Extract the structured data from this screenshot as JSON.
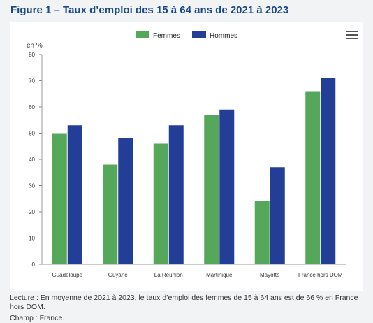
{
  "figure_title": "Figure 1 – Taux d’emploi des 15 à 64 ans de 2021 à 2023",
  "menu_icon": "hamburger-menu-icon",
  "colors": {
    "femmes": "#55a85a",
    "hommes": "#223e97",
    "axis": "#333333",
    "grid": "#e6e6e6",
    "title": "#1d4a86"
  },
  "chart_data": {
    "type": "bar",
    "title": "",
    "ylabel": "en %",
    "xlabel": "",
    "ylim": [
      0,
      80
    ],
    "yticks": [
      "0",
      "10",
      "20",
      "30",
      "40",
      "50",
      "60",
      "70",
      "80"
    ],
    "categories": [
      "Guadeloupe",
      "Guyane",
      "La Réunion",
      "Martinique",
      "Mayotte",
      "France hors DOM"
    ],
    "series": [
      {
        "name": "Femmes",
        "values": [
          50,
          38,
          46,
          57,
          24,
          66
        ]
      },
      {
        "name": "Hommes",
        "values": [
          53,
          48,
          53,
          59,
          37,
          71
        ]
      }
    ],
    "legend": "top-center",
    "grid": false
  },
  "footnotes": {
    "lecture": "Lecture : En moyenne de 2021 à 2023, le taux d’emploi des femmes de 15 à 64 ans est de 66 % en France hors DOM.",
    "champ": "Champ : France."
  }
}
